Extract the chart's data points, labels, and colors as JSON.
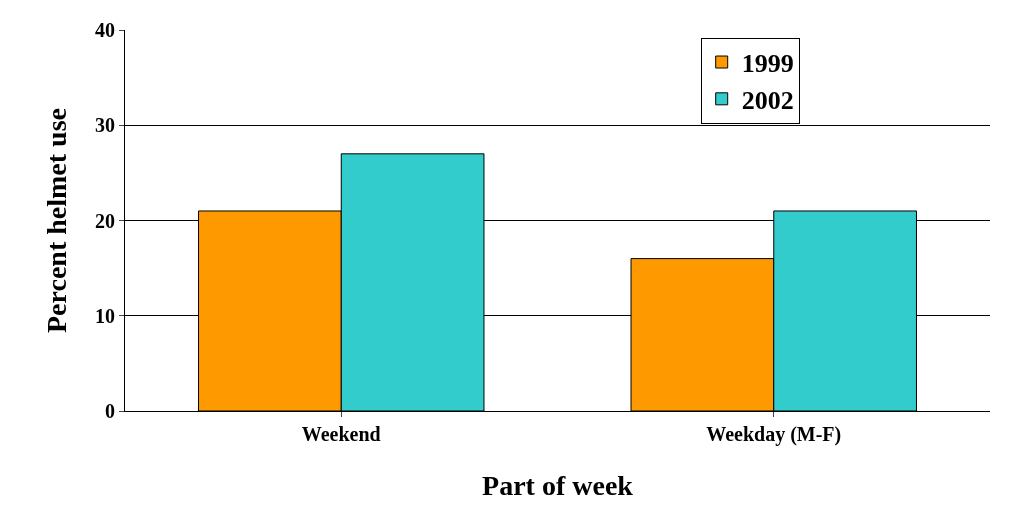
{
  "chart_data": {
    "type": "bar",
    "xlabel": "Part of week",
    "ylabel": "Percent helmet use",
    "categories": [
      "Weekend",
      "Weekday (M-F)"
    ],
    "series": [
      {
        "name": "1999",
        "color": "#ff9900",
        "values": [
          21,
          16
        ]
      },
      {
        "name": "2002",
        "color": "#33cccc",
        "values": [
          27,
          21
        ]
      }
    ],
    "ylim": [
      0,
      40
    ],
    "yticks": [
      0,
      10,
      20,
      30,
      40
    ],
    "grid": "y",
    "legend": "top right"
  }
}
